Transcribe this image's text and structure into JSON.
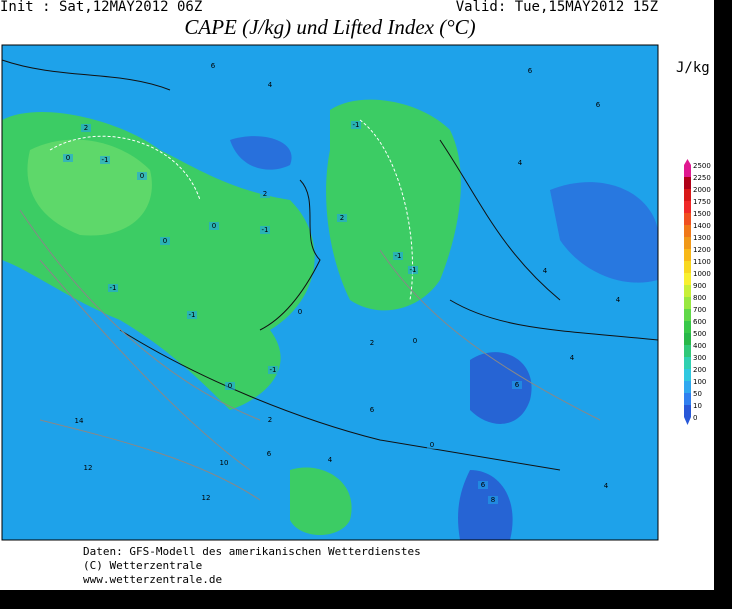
{
  "header": {
    "init": "Init : Sat,12MAY2012 06Z",
    "valid": "Valid: Tue,15MAY2012 15Z",
    "title": "CAPE (J/kg) und Lifted Index (°C)"
  },
  "colorbar": {
    "unit": "J/kg",
    "levels": [
      2500,
      2250,
      2000,
      1750,
      1500,
      1400,
      1300,
      1200,
      1100,
      1000,
      900,
      800,
      700,
      600,
      500,
      400,
      300,
      200,
      100,
      50,
      10,
      0
    ],
    "colors": [
      "#e01890",
      "#b00018",
      "#d81818",
      "#f02828",
      "#f05020",
      "#f07818",
      "#f09818",
      "#f8b818",
      "#f8d820",
      "#f8f030",
      "#c8f038",
      "#98e840",
      "#60d848",
      "#38c848",
      "#28b848",
      "#30c878",
      "#30d0b0",
      "#30c8e0",
      "#30a8f0",
      "#3080f0",
      "#2858d8"
    ]
  },
  "contour_labels": [
    6,
    4,
    6,
    6,
    2,
    0,
    -1,
    0,
    0,
    0,
    -1,
    2,
    -1,
    2,
    -1,
    -1,
    0,
    -1,
    -1,
    0,
    -1,
    2,
    0,
    2,
    6,
    4,
    4,
    4,
    4,
    6,
    14,
    12,
    10,
    12,
    6,
    4,
    0,
    6,
    8,
    4
  ],
  "footer": [
    "Daten: GFS-Modell des amerikanischen Wetterdienstes",
    "(C) Wetterzentrale",
    "www.wetterzentrale.de"
  ]
}
